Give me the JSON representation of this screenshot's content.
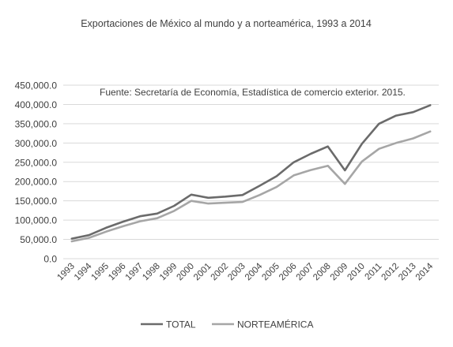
{
  "chart_data": {
    "type": "line",
    "title": "Exportaciones de México al mundo  y a norteamérica, 1993 a 2014",
    "annotation": "Fuente: Secretaría de Economía, Estadística de comercio exterior. 2015.",
    "xlabel": "",
    "ylabel": "",
    "ylim": [
      0,
      450000
    ],
    "yticks": [
      "0.0",
      "50,000.0",
      "100,000.0",
      "150,000.0",
      "200,000.0",
      "250,000.0",
      "300,000.0",
      "350,000.0",
      "400,000.0",
      "450,000.0"
    ],
    "grid": true,
    "legend_position": "bottom",
    "categories": [
      "1993",
      "1994",
      "1995",
      "1996",
      "1997",
      "1998",
      "1999",
      "2000",
      "2001",
      "2002",
      "2003",
      "2004",
      "2005",
      "2006",
      "2007",
      "2008",
      "2009",
      "2010",
      "2011",
      "2012",
      "2013",
      "2014"
    ],
    "series": [
      {
        "name": "TOTAL",
        "color": "#6b6b6b",
        "values": [
          52000,
          61000,
          80000,
          96000,
          110000,
          117000,
          137000,
          166000,
          158000,
          161000,
          165000,
          189000,
          214000,
          250000,
          272000,
          291000,
          229000,
          298000,
          350000,
          371000,
          380000,
          398000
        ]
      },
      {
        "name": "NORTEAMÉRICA",
        "color": "#a6a6a6",
        "values": [
          45000,
          54000,
          70000,
          84000,
          97000,
          105000,
          124000,
          150000,
          143000,
          145000,
          147000,
          165000,
          186000,
          216000,
          230000,
          241000,
          194000,
          252000,
          285000,
          300000,
          312000,
          330000
        ]
      }
    ]
  }
}
